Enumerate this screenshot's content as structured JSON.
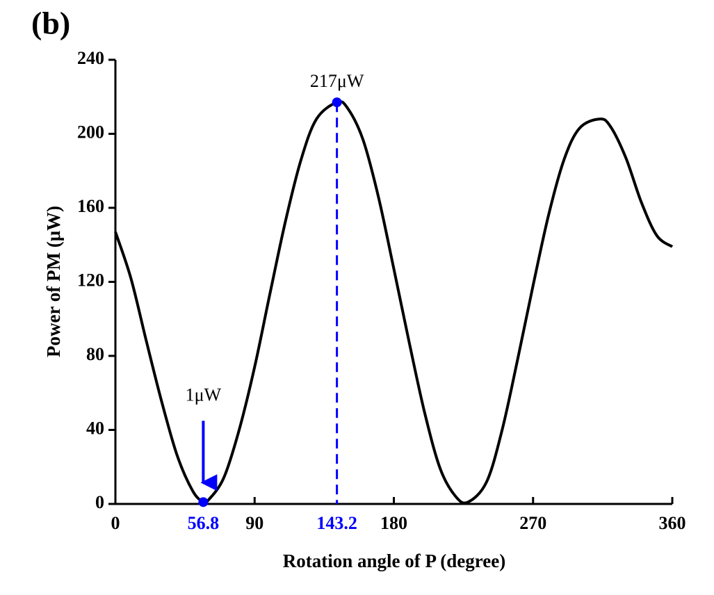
{
  "chart_data": {
    "type": "line",
    "panel_label": "(b)",
    "x_label": "Rotation angle of P (degree)",
    "y_label": "Power of PM (μW)",
    "x": [
      0,
      10,
      20,
      30,
      40,
      50,
      56.8,
      60,
      70,
      80,
      90,
      100,
      110,
      120,
      130,
      143.2,
      150,
      160,
      170,
      180,
      190,
      200,
      210,
      220,
      228,
      240,
      250,
      260,
      270,
      280,
      290,
      300,
      313,
      320,
      330,
      340,
      350,
      360
    ],
    "values": [
      147,
      122,
      88,
      55,
      26,
      7,
      1,
      2,
      14,
      40,
      74,
      114,
      153,
      186,
      208,
      217,
      214,
      197,
      166,
      127,
      87,
      49,
      19,
      4,
      1,
      12,
      40,
      78,
      118,
      156,
      186,
      203,
      208,
      204,
      187,
      163,
      145,
      139
    ],
    "color": "#000000",
    "points": {
      "x": [
        56.8,
        143.2
      ],
      "values": [
        1,
        217
      ],
      "color": "#0000ff"
    },
    "annotations": [
      "1μW",
      "217μW"
    ],
    "xlim": [
      0,
      360
    ],
    "xticks": [
      0,
      90,
      180,
      270,
      360
    ],
    "ylim": [
      0,
      240
    ],
    "yticks": [
      0,
      40,
      80,
      120,
      160,
      200,
      240
    ]
  }
}
